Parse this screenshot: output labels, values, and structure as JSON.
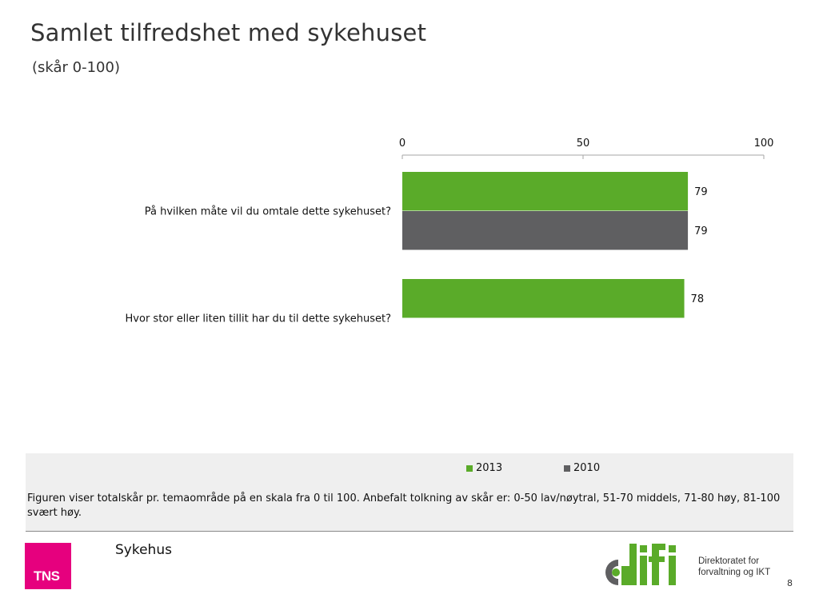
{
  "header": {
    "title": "Samlet tilfredshet med sykehuset",
    "subtitle": "(skår 0-100)"
  },
  "chart_data": {
    "type": "bar",
    "orientation": "horizontal",
    "categories": [
      "På hvilken måte vil du omtale dette sykehuset?",
      "Hvor stor eller liten tillit har du til dette sykehuset?"
    ],
    "series": [
      {
        "name": "2013",
        "color": "#5aab29",
        "values": [
          79,
          78
        ]
      },
      {
        "name": "2010",
        "color": "#5f5f61",
        "values": [
          79,
          null
        ]
      }
    ],
    "xlim": [
      0,
      100
    ],
    "xticks": [
      0,
      50,
      100
    ],
    "axis_position": "top",
    "grid": false,
    "legend_position": "bottom"
  },
  "note": {
    "text": "Figuren viser totalskår pr. temaområde på en skala fra 0 til 100. Anbefalt tolkning av skår er: 0-50 lav/nøytral, 51-70 middels, 71-80 høy, 81-100 svært høy."
  },
  "footer": {
    "brand": "TNS",
    "section": "Sykehus",
    "partner_logo_text": "difi",
    "partner_line1": "Direktoratet for",
    "partner_line2": "forvaltning og IKT",
    "page_number": "8"
  }
}
